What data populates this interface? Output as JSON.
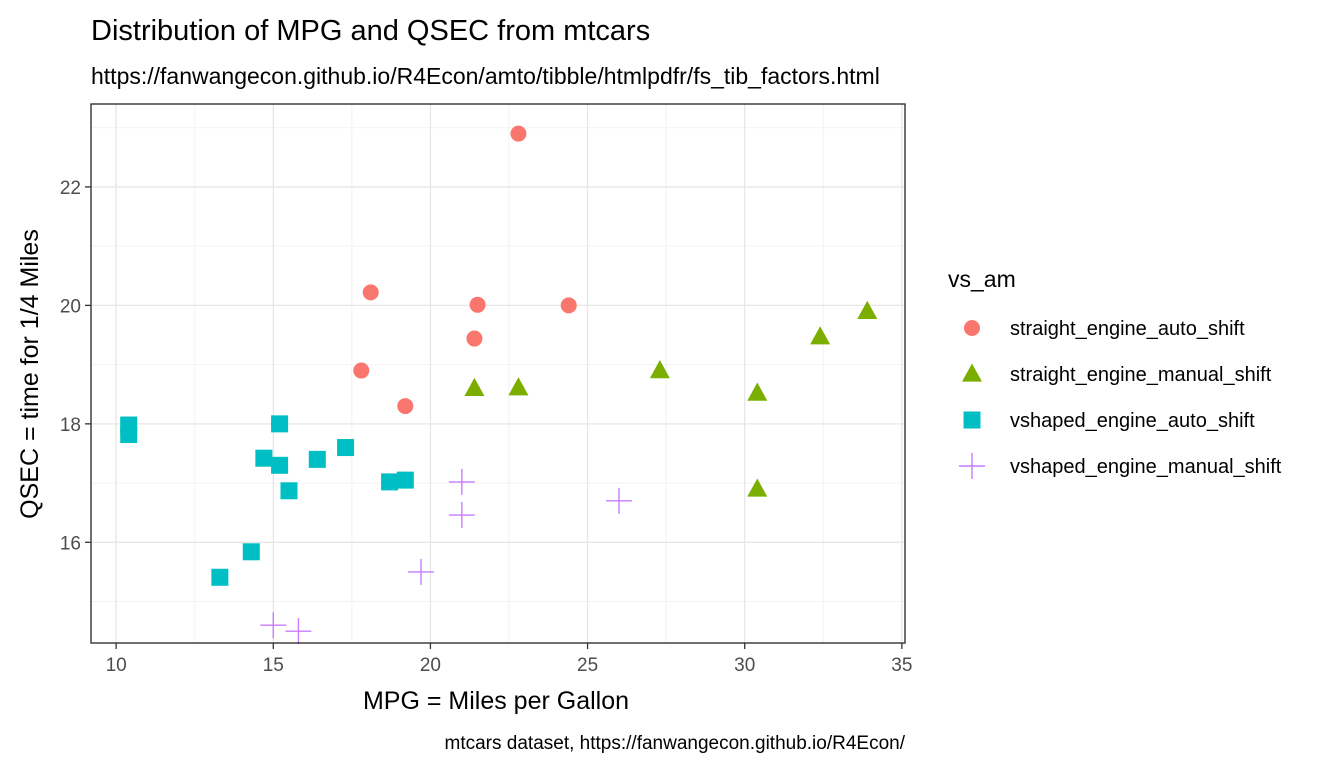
{
  "chart_data": {
    "type": "scatter",
    "title": "Distribution of MPG and QSEC from mtcars",
    "subtitle": "https://fanwangecon.github.io/R4Econ/amto/tibble/htmlpdfr/fs_tib_factors.html",
    "xlabel": "MPG = Miles per Gallon",
    "ylabel": "QSEC = time for 1/4 Miles",
    "caption": "mtcars dataset, https://fanwangecon.github.io/R4Econ/",
    "xlim": [
      9.2,
      35.1
    ],
    "ylim": [
      14.3,
      23.4
    ],
    "x_ticks": [
      10,
      15,
      20,
      25,
      30,
      35
    ],
    "y_ticks": [
      16,
      18,
      20,
      22
    ],
    "x_tick_labels": [
      "10",
      "15",
      "20",
      "25",
      "30",
      "35"
    ],
    "y_tick_labels": [
      "16",
      "18",
      "20",
      "22"
    ],
    "grid": true,
    "legend": {
      "title": "vs_am",
      "position": "right"
    },
    "series": [
      {
        "name": "straight_engine_auto_shift",
        "shape": "circle",
        "color": "#F8766D",
        "points": [
          [
            21.4,
            19.44
          ],
          [
            18.1,
            20.22
          ],
          [
            24.4,
            20.0
          ],
          [
            22.8,
            22.9
          ],
          [
            19.2,
            18.3
          ],
          [
            17.8,
            18.9
          ],
          [
            21.5,
            20.01
          ]
        ]
      },
      {
        "name": "straight_engine_manual_shift",
        "shape": "triangle",
        "color": "#7CAE00",
        "points": [
          [
            22.8,
            18.61
          ],
          [
            32.4,
            19.47
          ],
          [
            30.4,
            18.52
          ],
          [
            33.9,
            19.9
          ],
          [
            27.3,
            18.9
          ],
          [
            30.4,
            16.9
          ],
          [
            21.4,
            18.6
          ]
        ]
      },
      {
        "name": "vshaped_engine_auto_shift",
        "shape": "square",
        "color": "#00BFC4",
        "points": [
          [
            18.7,
            17.02
          ],
          [
            14.3,
            15.84
          ],
          [
            16.4,
            17.4
          ],
          [
            17.3,
            17.6
          ],
          [
            15.2,
            18.0
          ],
          [
            10.4,
            17.98
          ],
          [
            10.4,
            17.82
          ],
          [
            14.7,
            17.42
          ],
          [
            15.5,
            16.87
          ],
          [
            15.2,
            17.3
          ],
          [
            13.3,
            15.41
          ],
          [
            19.2,
            17.05
          ]
        ]
      },
      {
        "name": "vshaped_engine_manual_shift",
        "shape": "plus",
        "color": "#C77CFF",
        "points": [
          [
            21.0,
            16.46
          ],
          [
            21.0,
            17.02
          ],
          [
            26.0,
            16.7
          ],
          [
            15.8,
            14.5
          ],
          [
            19.7,
            15.5
          ],
          [
            15.0,
            14.6
          ]
        ]
      }
    ]
  }
}
